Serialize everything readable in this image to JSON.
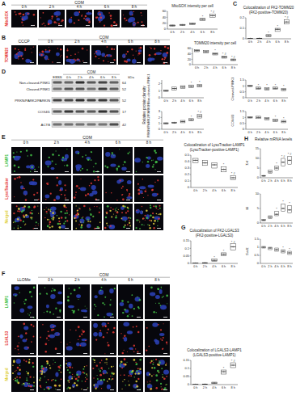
{
  "panel_labels": [
    "A",
    "B",
    "C",
    "D",
    "E",
    "F",
    "G",
    "H"
  ],
  "images": [
    {
      "condition": "COM",
      "times": [
        "0 h",
        "2 h",
        "4 h",
        "6 h",
        "8 h"
      ],
      "rows": [
        {
          "name": "MitoSOX",
          "color": "#e53935"
        }
      ]
    },
    {
      "control": "CCCP",
      "condition": "COM",
      "times": [
        "0 h",
        "2 h",
        "4 h",
        "6 h",
        "8 h"
      ],
      "rows": [
        {
          "name": "TOMM20",
          "color": "#e53935"
        }
      ]
    },
    {
      "condition": "COM",
      "times": [
        "0 h",
        "2 h",
        "4 h",
        "6 h",
        "8 h"
      ],
      "rows": [
        {
          "name": "LAMP1",
          "color": "#43c047"
        },
        {
          "name": "LysoTracker",
          "color": "#e53935"
        },
        {
          "name": "Merged",
          "color": "#e0d040"
        }
      ]
    },
    {
      "control": "LLOMe",
      "condition": "COM",
      "times": [
        "0 h",
        "2 h",
        "4 h",
        "6 h",
        "8 h"
      ],
      "rows": [
        {
          "name": "LAMP1",
          "color": "#43c047"
        },
        {
          "name": "LGALS3",
          "color": "#e53935"
        },
        {
          "name": "Merged",
          "color": "#e0d040"
        }
      ]
    }
  ],
  "blot": {
    "control": "EBSS",
    "condition": "COM",
    "times": [
      "0 h",
      "2 h",
      "4 h",
      "6 h",
      "8 h"
    ],
    "unit": "kDa",
    "bands": [
      {
        "name": "Non-cleaved-PINK1",
        "kda": 64
      },
      {
        "name": "Cleaved-PINK1",
        "kda": 52
      },
      {
        "name": "PRKN/PARK2/PARKIN",
        "kda": 52
      },
      {
        "name": "COX4I1",
        "kda": 17
      },
      {
        "name": "ACTB",
        "kda": 42
      }
    ],
    "ylabel": "Relative protein density"
  },
  "mrna_title": "Relative mRNA levels",
  "chart_data": [
    {
      "type": "box",
      "title": "MitoSOX intensity per cell",
      "categories": [
        "0 h",
        "2 h",
        "4 h",
        "6 h",
        "8 h"
      ],
      "values": [
        12,
        14,
        18,
        33,
        45
      ],
      "q1": [
        10,
        12,
        15,
        29,
        40
      ],
      "q3": [
        14,
        16,
        21,
        36,
        50
      ],
      "marks": [
        null,
        null,
        null,
        "*",
        "* #"
      ],
      "ylim": [
        0,
        60
      ],
      "yticks": [
        0,
        20,
        40,
        60
      ]
    },
    {
      "type": "box",
      "title": "Colocalization of FK2-TOMM20",
      "subtitle": "(FK2-positive-TOMM20)",
      "categories": [
        "0 h",
        "2 h",
        "4 h",
        "6 h",
        "8 h"
      ],
      "values": [
        0.002,
        0.004,
        0.03,
        0.09,
        0.16
      ],
      "q1": [
        0,
        0.002,
        0.02,
        0.07,
        0.14
      ],
      "q3": [
        0.004,
        0.006,
        0.04,
        0.1,
        0.18
      ],
      "marks": [
        null,
        null,
        "*",
        "*",
        "* #"
      ],
      "ylim": [
        0,
        0.2
      ],
      "yticks": [
        0,
        0.1,
        0.2
      ]
    },
    {
      "type": "box",
      "title": "TOMM20 intensity per cell",
      "categories": [
        "0 h",
        "2 h",
        "4 h",
        "6 h",
        "8 h"
      ],
      "values": [
        52,
        48,
        40,
        28,
        18
      ],
      "q1": [
        48,
        44,
        36,
        24,
        15
      ],
      "q3": [
        56,
        52,
        44,
        32,
        21
      ],
      "marks": [
        null,
        null,
        "*",
        "* #",
        "* #"
      ],
      "ylim": [
        0,
        60
      ],
      "yticks": [
        0,
        20,
        40,
        60
      ]
    },
    {
      "type": "box",
      "ylabel": "Non-cleaved-PINK1",
      "categories": [
        "0 h",
        "2 h",
        "4 h",
        "6 h",
        "8 h"
      ],
      "values": [
        1,
        1.3,
        1.5,
        1.6,
        1.7
      ],
      "q1": [
        0.9,
        1.1,
        1.3,
        1.4,
        1.5
      ],
      "q3": [
        1.1,
        1.5,
        1.7,
        1.8,
        1.9
      ],
      "marks": [
        null,
        null,
        null,
        "*",
        "*"
      ],
      "ylim": [
        0,
        2.5
      ],
      "yticks": [
        0,
        1,
        2
      ]
    },
    {
      "type": "box",
      "ylabel": "Cleaved-PINK1",
      "categories": [
        "0 h",
        "2 h",
        "4 h",
        "6 h",
        "8 h"
      ],
      "values": [
        1,
        0.8,
        0.75,
        0.8,
        0.7
      ],
      "q1": [
        0.95,
        0.7,
        0.65,
        0.7,
        0.6
      ],
      "q3": [
        1.05,
        0.9,
        0.85,
        0.9,
        0.8
      ],
      "marks": [
        null,
        "*",
        "*",
        "*",
        "*"
      ],
      "ylim": [
        0,
        1.5
      ],
      "yticks": [
        0,
        0.5,
        1,
        1.5
      ]
    },
    {
      "type": "box",
      "ylabel": "PRKN/PARK2/PARKIN",
      "categories": [
        "0 h",
        "2 h",
        "4 h",
        "6 h",
        "8 h"
      ],
      "values": [
        1,
        1.1,
        1.3,
        1.6,
        2.2
      ],
      "q1": [
        0.9,
        1,
        1.1,
        1.4,
        1.9
      ],
      "q3": [
        1.1,
        1.2,
        1.5,
        1.8,
        2.5
      ],
      "marks": [
        null,
        null,
        null,
        "*",
        "* #"
      ],
      "ylim": [
        0,
        3
      ],
      "yticks": [
        0,
        1,
        2,
        3
      ]
    },
    {
      "type": "box",
      "ylabel": "COX4I1",
      "categories": [
        "0 h",
        "2 h",
        "4 h",
        "6 h",
        "8 h"
      ],
      "values": [
        1,
        1,
        0.9,
        0.75,
        0.65
      ],
      "q1": [
        0.95,
        0.9,
        0.8,
        0.65,
        0.55
      ],
      "q3": [
        1.05,
        1.1,
        1,
        0.85,
        0.75
      ],
      "marks": [
        null,
        null,
        null,
        "*",
        "*"
      ],
      "ylim": [
        0,
        1.5
      ],
      "yticks": [
        0,
        0.5,
        1,
        1.5
      ]
    },
    {
      "type": "box",
      "title": "Colocalization of LysoTracker-LAMP1",
      "subtitle": "(LysoTracker-positive-LAMP1)",
      "categories": [
        "0 h",
        "2 h",
        "4 h",
        "6 h",
        "8 h"
      ],
      "values": [
        0.42,
        0.38,
        0.35,
        0.28,
        0.15
      ],
      "q1": [
        0.38,
        0.34,
        0.3,
        0.24,
        0.12
      ],
      "q3": [
        0.45,
        0.42,
        0.38,
        0.32,
        0.18
      ],
      "marks": [
        null,
        null,
        null,
        "*",
        "* #"
      ],
      "ylim": [
        0,
        0.5
      ],
      "yticks": [
        0,
        0.1,
        0.2,
        0.3,
        0.4,
        0.5
      ]
    },
    {
      "type": "box",
      "title": "Colocalization of FK2-LGALS3",
      "subtitle": "(FK2-positive-LGALS3)",
      "categories": [
        "0 h",
        "2 h",
        "4 h",
        "6 h",
        "8 h"
      ],
      "values": [
        0.001,
        0.003,
        0.02,
        0.06,
        0.11
      ],
      "q1": [
        0,
        0.001,
        0.012,
        0.05,
        0.09
      ],
      "q3": [
        0.003,
        0.005,
        0.028,
        0.07,
        0.13
      ],
      "marks": [
        null,
        null,
        "*",
        "*",
        "* #"
      ],
      "ylim": [
        0,
        0.15
      ],
      "yticks": [
        0,
        0.05,
        0.1,
        0.15
      ]
    },
    {
      "type": "box",
      "title": "Colocalization of LGALS3-LAMP1",
      "subtitle": "(LGALS3-positive-LAMP1)",
      "categories": [
        "0 h",
        "2 h",
        "4 h",
        "6 h",
        "8 h"
      ],
      "values": [
        0.001,
        0.002,
        0.01,
        0.08,
        0.12
      ],
      "q1": [
        0,
        0.001,
        0.006,
        0.065,
        0.105
      ],
      "q3": [
        0.002,
        0.004,
        0.015,
        0.09,
        0.135
      ],
      "marks": [
        null,
        null,
        null,
        "*",
        "* #"
      ],
      "ylim": [
        0,
        0.15
      ],
      "yticks": [
        0,
        0.05,
        0.1,
        0.15
      ]
    },
    {
      "type": "box",
      "ylabel": "Tnf",
      "categories": [
        "0 h",
        "2 h",
        "4 h",
        "6 h",
        "8 h"
      ],
      "values": [
        1,
        3,
        5,
        8,
        9
      ],
      "q1": [
        0.8,
        2.2,
        4,
        6,
        7
      ],
      "q3": [
        1.2,
        4,
        6,
        10,
        11
      ],
      "marks": [
        null,
        null,
        "*",
        "* #",
        "* #"
      ],
      "ylim": [
        0,
        15
      ],
      "yticks": [
        0,
        5,
        10,
        15
      ]
    },
    {
      "type": "box",
      "ylabel": "Il6",
      "categories": [
        "0 h",
        "2 h",
        "4 h",
        "6 h",
        "8 h"
      ],
      "values": [
        1,
        2,
        3,
        5,
        4.5
      ],
      "q1": [
        0.8,
        1.5,
        2.5,
        4,
        3.5
      ],
      "q3": [
        1.2,
        2.5,
        4,
        6.5,
        6
      ],
      "marks": [
        null,
        null,
        "*",
        "*",
        "*"
      ],
      "ylim": [
        0,
        10
      ],
      "yticks": [
        0,
        5,
        10
      ]
    },
    {
      "type": "box",
      "ylabel": "Sod1",
      "categories": [
        "0 h",
        "2 h",
        "4 h",
        "6 h",
        "8 h"
      ],
      "values": [
        1,
        0.95,
        0.85,
        0.75,
        0.65
      ],
      "q1": [
        0.95,
        0.85,
        0.75,
        0.65,
        0.55
      ],
      "q3": [
        1.05,
        1,
        0.95,
        0.85,
        0.75
      ],
      "marks": [
        null,
        null,
        null,
        "*",
        "*"
      ],
      "ylim": [
        0,
        1.5
      ],
      "yticks": [
        0,
        0.5,
        1,
        1.5
      ]
    }
  ]
}
